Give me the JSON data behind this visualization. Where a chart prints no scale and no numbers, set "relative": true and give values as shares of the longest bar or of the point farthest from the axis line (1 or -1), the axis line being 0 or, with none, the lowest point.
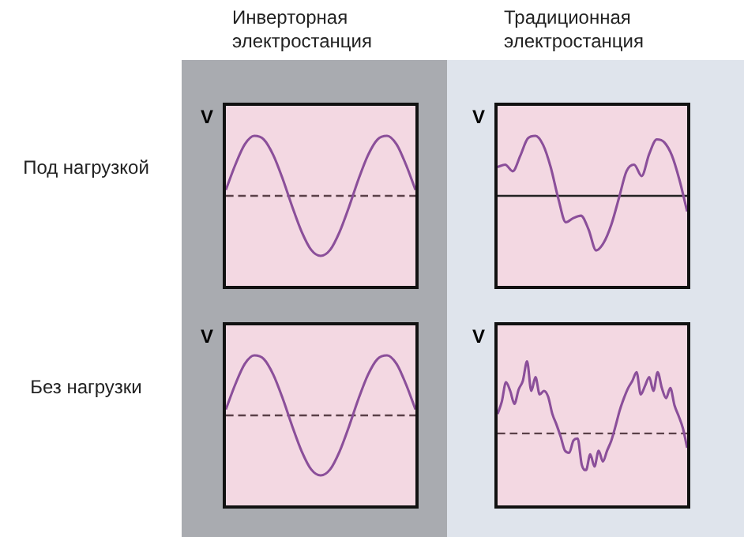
{
  "chart_data": [
    {
      "type": "line",
      "title": "Инверторная электростанция",
      "ylabel": "V",
      "annotations": [
        "Под нагрузкой"
      ],
      "relative": true,
      "ref_lines": [
        {
          "axis": "y",
          "value": 0,
          "line_style": "dashed",
          "color": "#5a4048"
        }
      ],
      "categories": [
        null,
        null,
        null,
        null,
        null,
        null,
        null,
        null,
        null,
        null,
        null,
        null,
        null,
        null,
        null,
        null,
        null,
        null,
        null,
        null,
        null
      ],
      "series": [
        {
          "color": "#8b4f9a",
          "values": [
            0.1,
            0.52,
            0.86,
            1,
            0.94,
            0.68,
            0.28,
            -0.18,
            -0.6,
            -0.9,
            -1,
            -0.9,
            -0.6,
            -0.18,
            0.28,
            0.68,
            0.94,
            1,
            0.86,
            0.52,
            0.1
          ]
        }
      ]
    },
    {
      "type": "line",
      "title": "Традиционная электростанция",
      "ylabel": "V",
      "relative": true,
      "ref_lines": [
        {
          "axis": "y",
          "value": 0
        }
      ],
      "categories": [
        null,
        null,
        null,
        null,
        null,
        null,
        null,
        null,
        null,
        null,
        null,
        null,
        null,
        null,
        null,
        null,
        null,
        null,
        null,
        null,
        null,
        null,
        null,
        null,
        null,
        null
      ],
      "series": [
        {
          "color": "#8b4f9a",
          "values": [
            0.48,
            0.52,
            0.41,
            0.67,
            0.96,
            1,
            0.85,
            0.48,
            -0.04,
            -0.44,
            -0.37,
            -0.33,
            -0.56,
            -0.91,
            -0.78,
            -0.48,
            -0.04,
            0.41,
            0.52,
            0.33,
            0.7,
            0.94,
            0.89,
            0.67,
            0.26,
            -0.26
          ]
        }
      ]
    },
    {
      "type": "line",
      "ylabel": "V",
      "annotations": [
        "Без нагрузки"
      ],
      "relative": true,
      "ref_lines": [
        {
          "axis": "y",
          "value": 0,
          "line_style": "dashed",
          "color": "#5a4048"
        }
      ],
      "categories": [
        null,
        null,
        null,
        null,
        null,
        null,
        null,
        null,
        null,
        null,
        null,
        null,
        null,
        null,
        null,
        null,
        null,
        null,
        null,
        null,
        null
      ],
      "series": [
        {
          "color": "#8b4f9a",
          "values": [
            0.1,
            0.52,
            0.86,
            1,
            0.94,
            0.68,
            0.28,
            -0.18,
            -0.6,
            -0.9,
            -1,
            -0.9,
            -0.6,
            -0.18,
            0.28,
            0.68,
            0.94,
            1,
            0.86,
            0.52,
            0.1
          ]
        }
      ]
    },
    {
      "type": "line",
      "ylabel": "V",
      "relative": true,
      "ref_lines": [
        {
          "axis": "y",
          "value": 0,
          "line_style": "dashed",
          "color": "#5a4048"
        }
      ],
      "categories": [
        null,
        null,
        null,
        null,
        null,
        null,
        null,
        null,
        null,
        null,
        null,
        null,
        null,
        null,
        null,
        null,
        null,
        null,
        null,
        null,
        null,
        null,
        null,
        null,
        null,
        null,
        null,
        null,
        null,
        null,
        null,
        null,
        null,
        null,
        null,
        null,
        null,
        null,
        null,
        null,
        null,
        null,
        null,
        null,
        null,
        null
      ],
      "series": [
        {
          "color": "#8b4f9a",
          "values": [
            0.27,
            0.44,
            0.71,
            0.59,
            0.41,
            0.61,
            0.73,
            1,
            0.59,
            0.78,
            0.54,
            0.59,
            0.51,
            0.27,
            0.12,
            -0.05,
            -0.24,
            -0.27,
            -0.1,
            -0.07,
            -0.44,
            -0.51,
            -0.29,
            -0.46,
            -0.24,
            -0.39,
            -0.24,
            -0.1,
            0.1,
            0.32,
            0.49,
            0.63,
            0.73,
            0.85,
            0.54,
            0.66,
            0.78,
            0.59,
            0.85,
            0.63,
            0.49,
            0.63,
            0.39,
            0.24,
            0.07,
            -0.2
          ]
        }
      ]
    }
  ]
}
